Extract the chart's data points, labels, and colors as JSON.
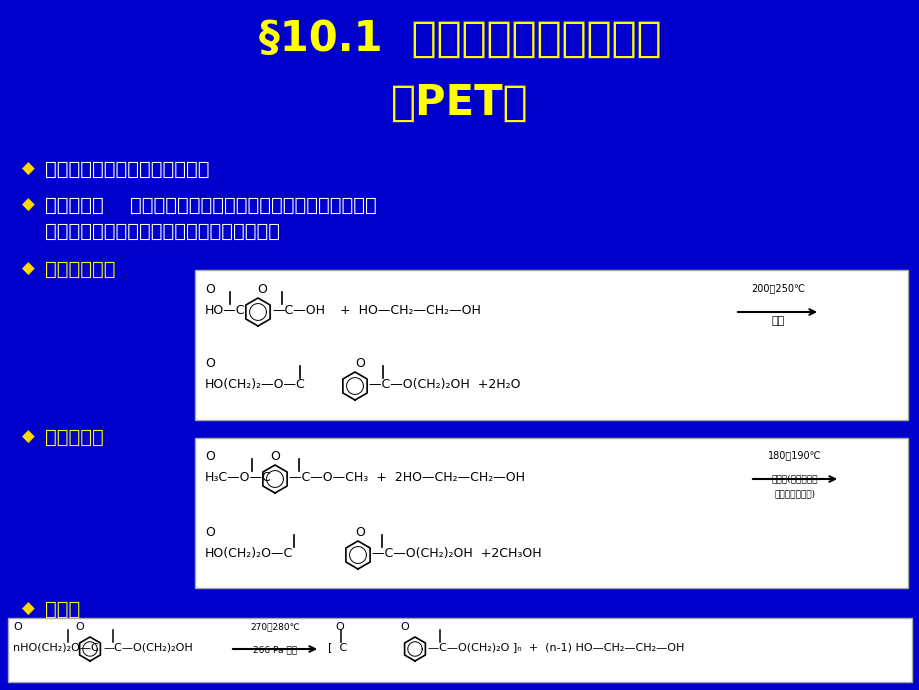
{
  "bg_color": "#0000CC",
  "title_line1": "§10.1  聚对苯二甲酸乙二醇酩",
  "title_line2": "（PET）",
  "title_color": "#FFFF00",
  "title_fontsize": 30,
  "bullet_color": "#FFFFFF",
  "highlight_color": "#FFFF00",
  "bullet1": "对苯二甲酸与乙二醇的缩聚产物",
  "bullet2a": "制备方法：",
  "bullet2b": "采用直接酯化法或酯交换法两种方法先制得对苯",
  "bullet2c": "二甲酸双羟乙酯，再使后者缩聚得到聚合物。",
  "bullet3": "直接酯化法：",
  "bullet4": "酯交换法：",
  "bullet5": "缩聚："
}
